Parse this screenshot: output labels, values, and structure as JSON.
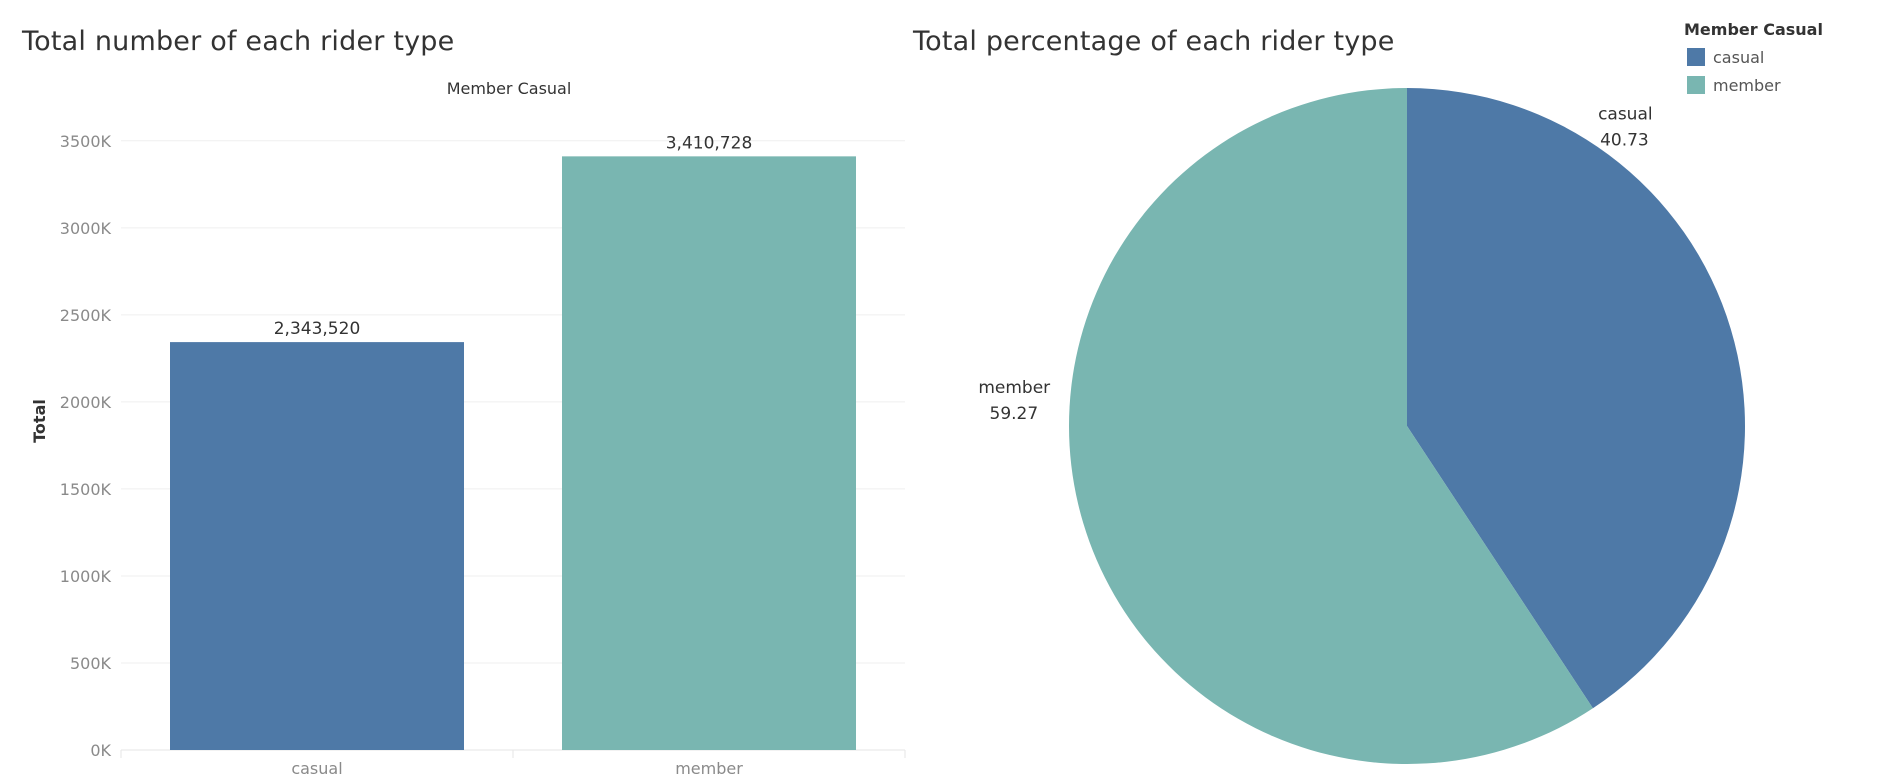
{
  "colors": {
    "casual": "#4e79a7",
    "member": "#79b6b1",
    "gridline": "#efefef"
  },
  "chart_data": [
    {
      "type": "bar",
      "title": "Total number of each rider type",
      "header": "Member Casual",
      "ylabel": "Total",
      "xlabel": "",
      "categories": [
        "casual",
        "member"
      ],
      "values": [
        2343520,
        3410728
      ],
      "value_labels": [
        "2,343,520",
        "3,410,728"
      ],
      "ylim": [
        0,
        3700000
      ],
      "yticks": [
        0,
        500000,
        1000000,
        1500000,
        2000000,
        2500000,
        3000000,
        3500000
      ],
      "ytick_labels": [
        "0K",
        "500K",
        "1000K",
        "1500K",
        "2000K",
        "2500K",
        "3000K",
        "3500K"
      ],
      "grid": true
    },
    {
      "type": "pie",
      "title": "Total percentage of each rider type",
      "labels": [
        "casual",
        "member"
      ],
      "values": [
        40.73,
        59.27
      ],
      "value_labels": [
        "40.73",
        "59.27"
      ],
      "legend": {
        "title": "Member Casual",
        "placement": "top-right",
        "entries": [
          "casual",
          "member"
        ]
      }
    }
  ]
}
